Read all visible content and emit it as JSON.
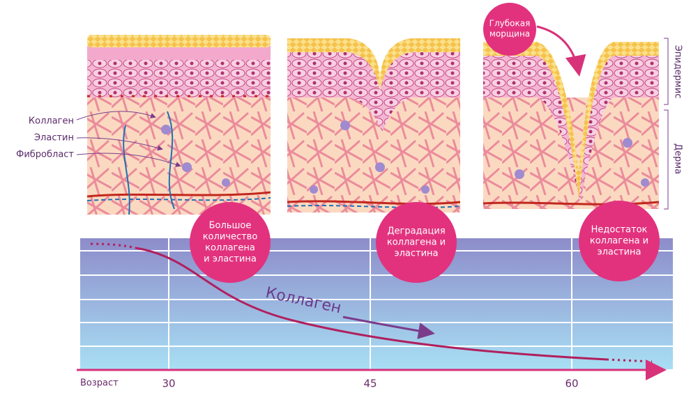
{
  "labels": {
    "collagen": "Коллаген",
    "elastin": "Эластин",
    "fibroblast": "Фибробласт",
    "epidermis": "Эпидермис",
    "dermis": "Дерма",
    "deep_wrinkle": [
      "Глубокая",
      "морщина"
    ]
  },
  "stages": [
    {
      "lines": [
        "Большое",
        "количество",
        "коллагена",
        "и эластина"
      ]
    },
    {
      "lines": [
        "Деградация",
        "коллагена и",
        "эластина"
      ]
    },
    {
      "lines": [
        "Недостаток",
        "коллагена и",
        "эластина"
      ]
    }
  ],
  "graph": {
    "curve_label": "Коллаген",
    "axis_label": "Возраст",
    "ticks": [
      "30",
      "45",
      "60"
    ]
  }
}
